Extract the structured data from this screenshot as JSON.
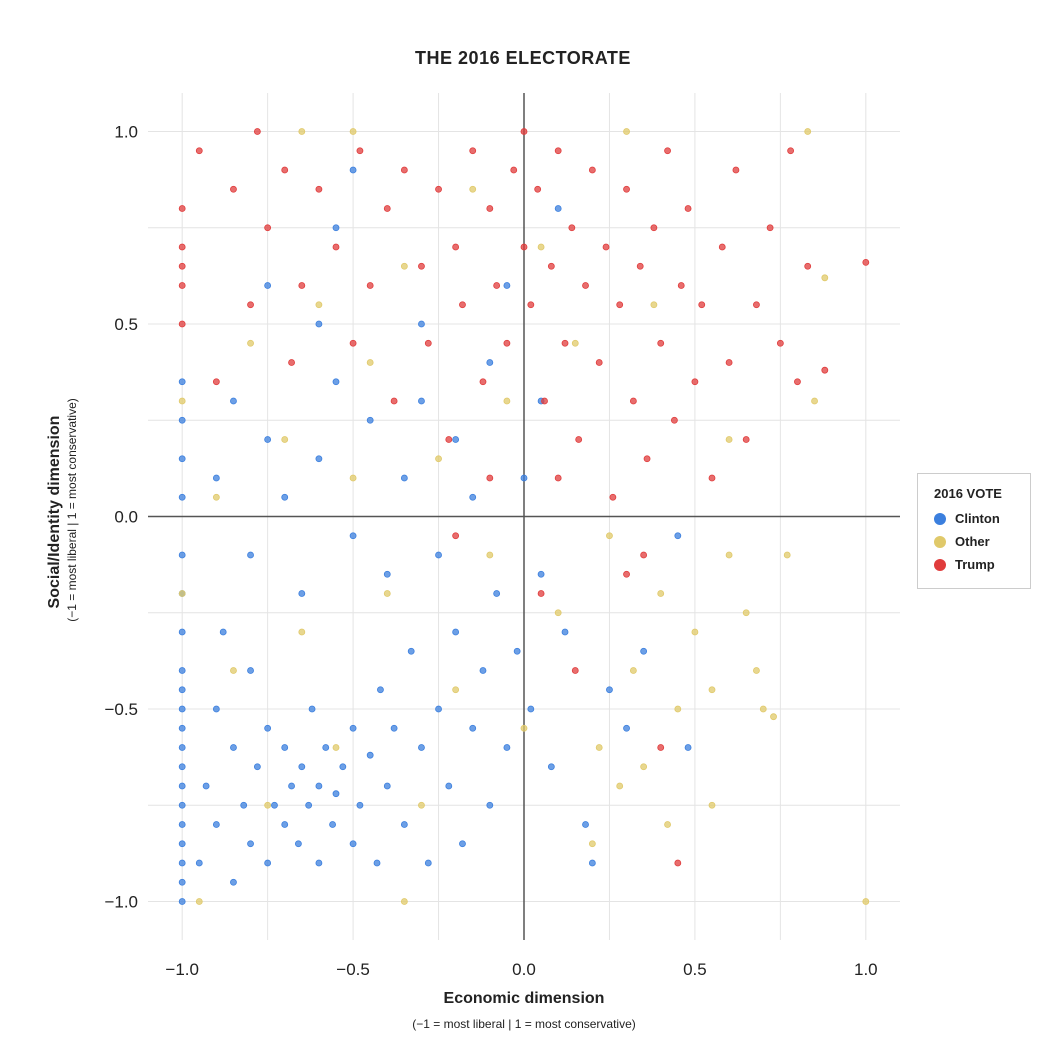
{
  "chart_data": {
    "type": "scatter",
    "title": "THE 2016 ELECTORATE",
    "xlabel": "Economic dimension",
    "xlabel_sub": "(−1 = most liberal | 1 = most conservative)",
    "ylabel": "Social/Identity dimension",
    "ylabel_sub": "(−1 = most liberal | 1 = most conservative)",
    "xlim": [
      -1.1,
      1.1
    ],
    "ylim": [
      -1.1,
      1.1
    ],
    "xticks": [
      "-1.0",
      "-0.5",
      "0.0",
      "0.5",
      "1.0"
    ],
    "yticks": [
      "1.0",
      "0.5",
      "0.0",
      "-0.5",
      "-1.0"
    ],
    "xtick_values": [
      -1,
      -0.5,
      0,
      0.5,
      1
    ],
    "ytick_values": [
      1,
      0.5,
      0,
      -0.5,
      -1
    ],
    "grid": true,
    "grid_step": 0.25,
    "zero_lines": true,
    "legend": {
      "title": "2016 VOTE",
      "position": "right"
    },
    "series": [
      {
        "name": "Clinton",
        "color": "#3b7fde",
        "points": [
          [
            -1,
            -1
          ],
          [
            -1,
            -0.95
          ],
          [
            -1,
            -0.9
          ],
          [
            -1,
            -0.85
          ],
          [
            -1,
            -0.8
          ],
          [
            -1,
            -0.75
          ],
          [
            -1,
            -0.7
          ],
          [
            -1,
            -0.65
          ],
          [
            -1,
            -0.6
          ],
          [
            -1,
            -0.55
          ],
          [
            -1,
            -0.5
          ],
          [
            -1,
            -0.45
          ],
          [
            -1,
            -0.4
          ],
          [
            -1,
            -0.3
          ],
          [
            -1,
            -0.2
          ],
          [
            -1,
            -0.1
          ],
          [
            -1,
            0.05
          ],
          [
            -1,
            0.15
          ],
          [
            -1,
            0.25
          ],
          [
            -1,
            0.35
          ],
          [
            -0.95,
            -0.9
          ],
          [
            -0.93,
            -0.7
          ],
          [
            -0.9,
            -0.8
          ],
          [
            -0.9,
            -0.5
          ],
          [
            -0.88,
            -0.3
          ],
          [
            -0.85,
            -0.95
          ],
          [
            -0.85,
            -0.6
          ],
          [
            -0.82,
            -0.75
          ],
          [
            -0.8,
            -0.85
          ],
          [
            -0.8,
            -0.4
          ],
          [
            -0.78,
            -0.65
          ],
          [
            -0.75,
            -0.9
          ],
          [
            -0.75,
            -0.55
          ],
          [
            -0.73,
            -0.75
          ],
          [
            -0.7,
            -0.8
          ],
          [
            -0.7,
            -0.6
          ],
          [
            -0.68,
            -0.7
          ],
          [
            -0.66,
            -0.85
          ],
          [
            -0.65,
            -0.65
          ],
          [
            -0.63,
            -0.75
          ],
          [
            -0.62,
            -0.5
          ],
          [
            -0.6,
            -0.9
          ],
          [
            -0.6,
            -0.7
          ],
          [
            -0.58,
            -0.6
          ],
          [
            -0.56,
            -0.8
          ],
          [
            -0.55,
            -0.72
          ],
          [
            -0.53,
            -0.65
          ],
          [
            -0.5,
            -0.85
          ],
          [
            -0.5,
            -0.55
          ],
          [
            -0.48,
            -0.75
          ],
          [
            -0.45,
            -0.62
          ],
          [
            -0.43,
            -0.9
          ],
          [
            -0.42,
            -0.45
          ],
          [
            -0.4,
            -0.7
          ],
          [
            -0.38,
            -0.55
          ],
          [
            -0.35,
            -0.8
          ],
          [
            -0.33,
            -0.35
          ],
          [
            -0.3,
            -0.6
          ],
          [
            -0.28,
            -0.9
          ],
          [
            -0.25,
            -0.5
          ],
          [
            -0.22,
            -0.7
          ],
          [
            -0.2,
            -0.3
          ],
          [
            -0.18,
            -0.85
          ],
          [
            -0.15,
            -0.55
          ],
          [
            -0.12,
            -0.4
          ],
          [
            -0.1,
            -0.75
          ],
          [
            -0.08,
            -0.2
          ],
          [
            -0.05,
            -0.6
          ],
          [
            -0.02,
            -0.35
          ],
          [
            0.02,
            -0.5
          ],
          [
            0.05,
            -0.15
          ],
          [
            0.08,
            -0.65
          ],
          [
            0.12,
            -0.3
          ],
          [
            0.18,
            -0.8
          ],
          [
            0.2,
            -0.9
          ],
          [
            0.25,
            -0.45
          ],
          [
            0.3,
            -0.55
          ],
          [
            0.35,
            -0.35
          ],
          [
            0.48,
            -0.6
          ],
          [
            0.45,
            -0.05
          ],
          [
            -0.9,
            0.1
          ],
          [
            -0.85,
            0.3
          ],
          [
            -0.8,
            -0.1
          ],
          [
            -0.75,
            0.2
          ],
          [
            -0.7,
            0.05
          ],
          [
            -0.65,
            -0.2
          ],
          [
            -0.6,
            0.15
          ],
          [
            -0.55,
            0.35
          ],
          [
            -0.5,
            -0.05
          ],
          [
            -0.45,
            0.25
          ],
          [
            -0.4,
            -0.15
          ],
          [
            -0.35,
            0.1
          ],
          [
            -0.3,
            0.3
          ],
          [
            -0.25,
            -0.1
          ],
          [
            -0.2,
            0.2
          ],
          [
            -0.15,
            0.05
          ],
          [
            -0.1,
            0.4
          ],
          [
            0,
            0.1
          ],
          [
            0.05,
            0.3
          ],
          [
            -0.6,
            0.5
          ],
          [
            -0.75,
            0.6
          ],
          [
            -0.55,
            0.75
          ],
          [
            -0.5,
            0.9
          ],
          [
            -0.3,
            0.5
          ],
          [
            0.1,
            0.8
          ],
          [
            -0.05,
            0.6
          ]
        ]
      },
      {
        "name": "Other",
        "color": "#e0c96a",
        "points": [
          [
            -1,
            0.3
          ],
          [
            -1,
            -0.2
          ],
          [
            -0.95,
            -1
          ],
          [
            -0.9,
            0.05
          ],
          [
            -0.85,
            -0.4
          ],
          [
            -0.8,
            0.45
          ],
          [
            -0.75,
            -0.75
          ],
          [
            -0.7,
            0.2
          ],
          [
            -0.65,
            -0.3
          ],
          [
            -0.6,
            0.55
          ],
          [
            -0.55,
            -0.6
          ],
          [
            -0.5,
            0.1
          ],
          [
            -0.45,
            0.4
          ],
          [
            -0.4,
            -0.2
          ],
          [
            -0.35,
            0.65
          ],
          [
            -0.3,
            -0.75
          ],
          [
            -0.25,
            0.15
          ],
          [
            -0.2,
            -0.45
          ],
          [
            -0.15,
            0.85
          ],
          [
            -0.1,
            -0.1
          ],
          [
            -0.05,
            0.3
          ],
          [
            0,
            -0.55
          ],
          [
            0.05,
            0.7
          ],
          [
            0.1,
            -0.25
          ],
          [
            0.15,
            0.45
          ],
          [
            0.2,
            -0.85
          ],
          [
            0.22,
            -0.6
          ],
          [
            0.25,
            -0.05
          ],
          [
            0.28,
            -0.7
          ],
          [
            0.32,
            -0.4
          ],
          [
            0.35,
            -0.65
          ],
          [
            0.4,
            -0.2
          ],
          [
            0.42,
            -0.8
          ],
          [
            0.45,
            -0.5
          ],
          [
            0.5,
            -0.3
          ],
          [
            0.55,
            -0.75
          ],
          [
            0.55,
            -0.45
          ],
          [
            0.6,
            -0.1
          ],
          [
            0.65,
            -0.25
          ],
          [
            0.68,
            -0.4
          ],
          [
            0.7,
            -0.5
          ],
          [
            0.73,
            -0.52
          ],
          [
            0.77,
            -0.1
          ],
          [
            0.83,
            1
          ],
          [
            0.88,
            0.62
          ],
          [
            0.85,
            0.3
          ],
          [
            1,
            -1
          ],
          [
            0.6,
            0.2
          ],
          [
            0.3,
            1
          ],
          [
            -0.5,
            1
          ],
          [
            -0.65,
            1
          ],
          [
            -0.35,
            -1
          ],
          [
            0.38,
            0.55
          ]
        ]
      },
      {
        "name": "Trump",
        "color": "#e03c3c",
        "points": [
          [
            -1,
            0.8
          ],
          [
            -1,
            0.7
          ],
          [
            -1,
            0.65
          ],
          [
            -1,
            0.6
          ],
          [
            -1,
            0.5
          ],
          [
            -0.95,
            0.95
          ],
          [
            -0.9,
            0.35
          ],
          [
            -0.85,
            0.85
          ],
          [
            -0.8,
            0.55
          ],
          [
            -0.78,
            1
          ],
          [
            -0.75,
            0.75
          ],
          [
            -0.7,
            0.9
          ],
          [
            -0.68,
            0.4
          ],
          [
            -0.65,
            0.6
          ],
          [
            -0.6,
            0.85
          ],
          [
            -0.55,
            0.7
          ],
          [
            -0.5,
            0.45
          ],
          [
            -0.48,
            0.95
          ],
          [
            -0.45,
            0.6
          ],
          [
            -0.4,
            0.8
          ],
          [
            -0.38,
            0.3
          ],
          [
            -0.35,
            0.9
          ],
          [
            -0.3,
            0.65
          ],
          [
            -0.28,
            0.45
          ],
          [
            -0.25,
            0.85
          ],
          [
            -0.22,
            0.2
          ],
          [
            -0.2,
            0.7
          ],
          [
            -0.18,
            0.55
          ],
          [
            -0.15,
            0.95
          ],
          [
            -0.12,
            0.35
          ],
          [
            -0.1,
            0.8
          ],
          [
            -0.08,
            0.6
          ],
          [
            -0.05,
            0.45
          ],
          [
            -0.03,
            0.9
          ],
          [
            0,
            0.7
          ],
          [
            0,
            1
          ],
          [
            0.02,
            0.55
          ],
          [
            0.04,
            0.85
          ],
          [
            0.06,
            0.3
          ],
          [
            0.08,
            0.65
          ],
          [
            0.1,
            0.95
          ],
          [
            0.12,
            0.45
          ],
          [
            0.14,
            0.75
          ],
          [
            0.16,
            0.2
          ],
          [
            0.18,
            0.6
          ],
          [
            0.2,
            0.9
          ],
          [
            0.22,
            0.4
          ],
          [
            0.24,
            0.7
          ],
          [
            0.26,
            0.05
          ],
          [
            0.28,
            0.55
          ],
          [
            0.3,
            0.85
          ],
          [
            0.32,
            0.3
          ],
          [
            0.34,
            0.65
          ],
          [
            0.36,
            0.15
          ],
          [
            0.38,
            0.75
          ],
          [
            0.4,
            0.45
          ],
          [
            0.42,
            0.95
          ],
          [
            0.44,
            0.25
          ],
          [
            0.46,
            0.6
          ],
          [
            0.48,
            0.8
          ],
          [
            0.5,
            0.35
          ],
          [
            0.52,
            0.55
          ],
          [
            0.55,
            0.1
          ],
          [
            0.58,
            0.7
          ],
          [
            0.6,
            0.4
          ],
          [
            0.62,
            0.9
          ],
          [
            0.65,
            0.2
          ],
          [
            0.68,
            0.55
          ],
          [
            0.72,
            0.75
          ],
          [
            0.75,
            0.45
          ],
          [
            0.78,
            0.95
          ],
          [
            0.8,
            0.35
          ],
          [
            0.83,
            0.65
          ],
          [
            0.88,
            0.38
          ],
          [
            1,
            0.66
          ],
          [
            0.05,
            -0.2
          ],
          [
            0.15,
            -0.4
          ],
          [
            0.3,
            -0.15
          ],
          [
            0.45,
            -0.9
          ],
          [
            -0.1,
            0.1
          ],
          [
            0.1,
            0.1
          ],
          [
            -0.2,
            -0.05
          ],
          [
            0.4,
            -0.6
          ],
          [
            0.35,
            -0.1
          ]
        ]
      }
    ]
  }
}
